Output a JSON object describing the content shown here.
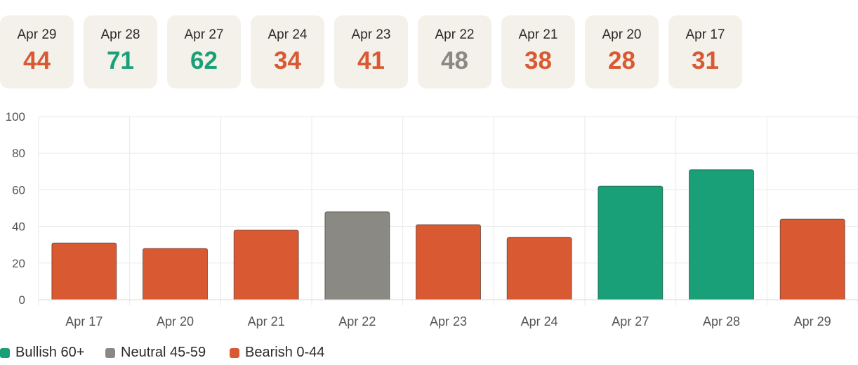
{
  "cards": [
    {
      "date": "Apr 29",
      "value": "44",
      "sentiment": "bearish"
    },
    {
      "date": "Apr 28",
      "value": "71",
      "sentiment": "bullish"
    },
    {
      "date": "Apr 27",
      "value": "62",
      "sentiment": "bullish"
    },
    {
      "date": "Apr 24",
      "value": "34",
      "sentiment": "bearish"
    },
    {
      "date": "Apr 23",
      "value": "41",
      "sentiment": "bearish"
    },
    {
      "date": "Apr 22",
      "value": "48",
      "sentiment": "neutral"
    },
    {
      "date": "Apr 21",
      "value": "38",
      "sentiment": "bearish"
    },
    {
      "date": "Apr 20",
      "value": "28",
      "sentiment": "bearish"
    },
    {
      "date": "Apr 17",
      "value": "31",
      "sentiment": "bearish"
    }
  ],
  "colors": {
    "bullish": "#1aa078",
    "neutral": "#8a8983",
    "bearish": "#d95a32",
    "card_bg": "#f3f1ea"
  },
  "legend": [
    {
      "label": "Bullish 60+",
      "sentiment": "bullish"
    },
    {
      "label": "Neutral 45-59",
      "sentiment": "neutral"
    },
    {
      "label": "Bearish 0-44",
      "sentiment": "bearish"
    }
  ],
  "chart_data": {
    "type": "bar",
    "categories": [
      "Apr 17",
      "Apr 20",
      "Apr 21",
      "Apr 22",
      "Apr 23",
      "Apr 24",
      "Apr 27",
      "Apr 28",
      "Apr 29"
    ],
    "values": [
      31,
      28,
      38,
      48,
      41,
      34,
      62,
      71,
      44
    ],
    "bar_sentiment": [
      "bearish",
      "bearish",
      "bearish",
      "neutral",
      "bearish",
      "bearish",
      "bullish",
      "bullish",
      "bearish"
    ],
    "ylim": [
      0,
      100
    ],
    "yticks": [
      "0",
      "20",
      "40",
      "60",
      "80",
      "100"
    ],
    "grid": true,
    "legend_position": "bottom-left"
  }
}
